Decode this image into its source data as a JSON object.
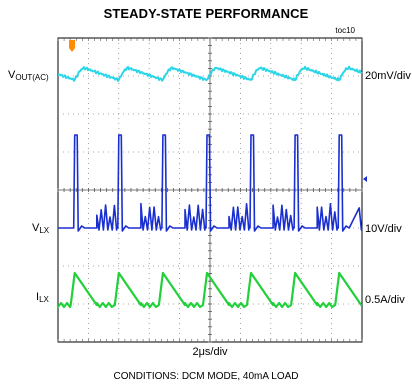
{
  "title": "STEADY-STATE PERFORMANCE",
  "figure_id": "toc10",
  "time_scale": "2μs/div",
  "conditions": "CONDITIONS: DCM MODE, 40mA LOAD",
  "colors": {
    "vout": "#2bd6e8",
    "vlx": "#1a2fd0",
    "ilx": "#22d03a",
    "ground_marker": "#ff8c00",
    "trigger_marker": "#1a2fd0"
  },
  "chart_data": {
    "type": "line",
    "title": "STEADY-STATE PERFORMANCE",
    "xlabel": "2μs/div",
    "grid": true,
    "divisions": {
      "x": 10,
      "y": 8
    },
    "x_range_us": [
      0,
      20
    ],
    "series": [
      {
        "name": "VOUT(AC)",
        "label_main": "V",
        "label_sub": "OUT(AC)",
        "scale": "20mV/div",
        "color": "#2bd6e8",
        "waveform": "sawtooth ripple",
        "period_us": 2.9,
        "pk_pk_mV": 12
      },
      {
        "name": "VLX",
        "label_main": "V",
        "label_sub": "LX",
        "scale": "10V/div",
        "color": "#1a2fd0",
        "waveform": "DCM switching node",
        "period_us": 2.9,
        "pulse_high_V": 23,
        "base_V": 0,
        "ringing_pk_V": 7
      },
      {
        "name": "ILX",
        "label_main": "I",
        "label_sub": "LX",
        "scale": "0.5A/div",
        "color": "#22d03a",
        "waveform": "triangular inductor current",
        "period_us": 2.9,
        "peak_A": 0.5,
        "valley_A": 0
      }
    ],
    "pulse_times_us": [
      1.1,
      4.0,
      6.9,
      9.8,
      12.7,
      15.6,
      18.5
    ]
  }
}
